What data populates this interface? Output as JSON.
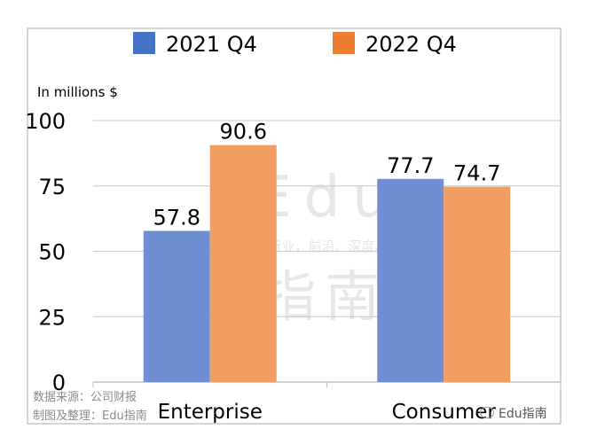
{
  "chart_data": {
    "type": "bar",
    "categories": [
      "Enterprise",
      "Consumer"
    ],
    "series": [
      {
        "name": "2021 Q4",
        "values": [
          57.8,
          77.7
        ],
        "color": "#6f8fd2"
      },
      {
        "name": "2022 Q4",
        "values": [
          90.6,
          74.7
        ],
        "color": "#f29e63"
      }
    ],
    "ylabel": "In millions $",
    "ylim": [
      0,
      100
    ],
    "yticks": [
      0,
      25,
      50,
      75,
      100
    ],
    "grid": true,
    "legend_position": "top",
    "legend_swatch_colors": [
      "#4472c4",
      "#ed7d31"
    ]
  },
  "watermark": {
    "line1": "Edu",
    "line2": "教育行业，前沿、深度、独家",
    "line3": "指南"
  },
  "source": {
    "line1": "数据来源：公司财报",
    "line2": "制图及整理：Edu指南"
  },
  "credit": "Edu指南",
  "credit_icon": "wechat-icon"
}
